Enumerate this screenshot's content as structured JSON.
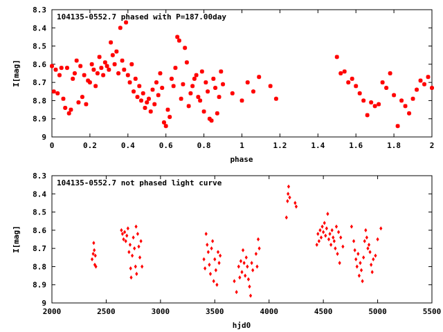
{
  "chart_data": [
    {
      "type": "scatter",
      "title": "104135-0552.7 phased with P=187.00day",
      "xlabel": "phase",
      "ylabel": "I[mag]",
      "xlim": [
        0,
        2
      ],
      "ylim": [
        8.3,
        9
      ],
      "y_inverted": true,
      "xticks": [
        "0",
        "0.2",
        "0.4",
        "0.6",
        "0.8",
        "1",
        "1.2",
        "1.4",
        "1.6",
        "1.8",
        "2"
      ],
      "yticks": [
        "8.3",
        "8.4",
        "8.5",
        "8.6",
        "8.7",
        "8.8",
        "8.9",
        "9"
      ],
      "marker": "star",
      "color": "#ff0000",
      "points": [
        [
          0.0,
          8.61
        ],
        [
          0.01,
          8.75
        ],
        [
          0.02,
          8.63
        ],
        [
          0.03,
          8.76
        ],
        [
          0.04,
          8.66
        ],
        [
          0.05,
          8.62
        ],
        [
          0.06,
          8.79
        ],
        [
          0.07,
          8.84
        ],
        [
          0.08,
          8.62
        ],
        [
          0.09,
          8.87
        ],
        [
          0.1,
          8.85
        ],
        [
          0.11,
          8.68
        ],
        [
          0.12,
          8.65
        ],
        [
          0.13,
          8.58
        ],
        [
          0.14,
          8.81
        ],
        [
          0.15,
          8.61
        ],
        [
          0.16,
          8.78
        ],
        [
          0.17,
          8.66
        ],
        [
          0.18,
          8.82
        ],
        [
          0.19,
          8.69
        ],
        [
          0.2,
          8.7
        ],
        [
          0.21,
          8.6
        ],
        [
          0.22,
          8.63
        ],
        [
          0.23,
          8.72
        ],
        [
          0.24,
          8.65
        ],
        [
          0.25,
          8.56
        ],
        [
          0.26,
          8.62
        ],
        [
          0.27,
          8.66
        ],
        [
          0.28,
          8.59
        ],
        [
          0.29,
          8.61
        ],
        [
          0.3,
          8.63
        ],
        [
          0.31,
          8.48
        ],
        [
          0.32,
          8.55
        ],
        [
          0.33,
          8.6
        ],
        [
          0.34,
          8.53
        ],
        [
          0.35,
          8.65
        ],
        [
          0.36,
          8.4
        ],
        [
          0.37,
          8.58
        ],
        [
          0.38,
          8.63
        ],
        [
          0.39,
          8.37
        ],
        [
          0.4,
          8.66
        ],
        [
          0.41,
          8.7
        ],
        [
          0.42,
          8.6
        ],
        [
          0.43,
          8.75
        ],
        [
          0.44,
          8.68
        ],
        [
          0.45,
          8.78
        ],
        [
          0.46,
          8.72
        ],
        [
          0.47,
          8.8
        ],
        [
          0.48,
          8.76
        ],
        [
          0.49,
          8.84
        ],
        [
          0.5,
          8.81
        ],
        [
          0.51,
          8.79
        ],
        [
          0.52,
          8.86
        ],
        [
          0.53,
          8.74
        ],
        [
          0.54,
          8.82
        ],
        [
          0.55,
          8.7
        ],
        [
          0.56,
          8.77
        ],
        [
          0.57,
          8.65
        ],
        [
          0.58,
          8.73
        ],
        [
          0.59,
          8.92
        ],
        [
          0.6,
          8.94
        ],
        [
          0.61,
          8.85
        ],
        [
          0.62,
          8.89
        ],
        [
          0.63,
          8.68
        ],
        [
          0.64,
          8.72
        ],
        [
          0.65,
          8.62
        ],
        [
          0.66,
          8.45
        ],
        [
          0.67,
          8.47
        ],
        [
          0.68,
          8.79
        ],
        [
          0.69,
          8.71
        ],
        [
          0.7,
          8.51
        ],
        [
          0.71,
          8.59
        ],
        [
          0.72,
          8.83
        ],
        [
          0.73,
          8.76
        ],
        [
          0.74,
          8.72
        ],
        [
          0.75,
          8.68
        ],
        [
          0.76,
          8.66
        ],
        [
          0.77,
          8.78
        ],
        [
          0.78,
          8.8
        ],
        [
          0.79,
          8.64
        ],
        [
          0.8,
          8.86
        ],
        [
          0.81,
          8.7
        ],
        [
          0.82,
          8.75
        ],
        [
          0.83,
          8.9
        ],
        [
          0.84,
          8.91
        ],
        [
          0.85,
          8.68
        ],
        [
          0.86,
          8.73
        ],
        [
          0.87,
          8.87
        ],
        [
          0.88,
          8.78
        ],
        [
          0.89,
          8.64
        ],
        [
          0.9,
          8.71
        ],
        [
          0.95,
          8.76
        ],
        [
          1.0,
          8.8
        ],
        [
          1.03,
          8.7
        ],
        [
          1.06,
          8.75
        ],
        [
          1.09,
          8.67
        ],
        [
          1.15,
          8.72
        ],
        [
          1.18,
          8.79
        ],
        [
          1.5,
          8.56
        ],
        [
          1.52,
          8.65
        ],
        [
          1.54,
          8.64
        ],
        [
          1.56,
          8.7
        ],
        [
          1.58,
          8.68
        ],
        [
          1.6,
          8.72
        ],
        [
          1.62,
          8.76
        ],
        [
          1.64,
          8.8
        ],
        [
          1.66,
          8.88
        ],
        [
          1.68,
          8.81
        ],
        [
          1.7,
          8.83
        ],
        [
          1.72,
          8.82
        ],
        [
          1.74,
          8.7
        ],
        [
          1.76,
          8.73
        ],
        [
          1.78,
          8.65
        ],
        [
          1.8,
          8.77
        ],
        [
          1.82,
          8.94
        ],
        [
          1.84,
          8.8
        ],
        [
          1.86,
          8.83
        ],
        [
          1.88,
          8.87
        ],
        [
          1.9,
          8.79
        ],
        [
          1.92,
          8.74
        ],
        [
          1.94,
          8.69
        ],
        [
          1.96,
          8.71
        ],
        [
          1.98,
          8.67
        ],
        [
          2.0,
          8.73
        ]
      ]
    },
    {
      "type": "scatter",
      "title": "104135-0552.7 not phased light curve",
      "xlabel": "hjd0",
      "ylabel": "I[mag]",
      "xlim": [
        2000,
        5500
      ],
      "ylim": [
        8.3,
        9
      ],
      "y_inverted": true,
      "xticks": [
        "2000",
        "2500",
        "3000",
        "3500",
        "4000",
        "4500",
        "5000",
        "5500"
      ],
      "yticks": [
        "8.3",
        "8.4",
        "8.5",
        "8.6",
        "8.7",
        "8.8",
        "8.9",
        "9"
      ],
      "marker": "diamond",
      "color": "#ff0000",
      "points": [
        [
          2370,
          8.76
        ],
        [
          2380,
          8.73
        ],
        [
          2385,
          8.67
        ],
        [
          2390,
          8.71
        ],
        [
          2395,
          8.79
        ],
        [
          2400,
          8.74
        ],
        [
          2405,
          8.8
        ],
        [
          2640,
          8.6
        ],
        [
          2650,
          8.62
        ],
        [
          2660,
          8.65
        ],
        [
          2670,
          8.61
        ],
        [
          2680,
          8.66
        ],
        [
          2690,
          8.63
        ],
        [
          2700,
          8.59
        ],
        [
          2710,
          8.72
        ],
        [
          2720,
          8.68
        ],
        [
          2725,
          8.81
        ],
        [
          2730,
          8.86
        ],
        [
          2740,
          8.74
        ],
        [
          2750,
          8.64
        ],
        [
          2760,
          8.7
        ],
        [
          2770,
          8.8
        ],
        [
          2775,
          8.58
        ],
        [
          2780,
          8.84
        ],
        [
          2790,
          8.62
        ],
        [
          2800,
          8.69
        ],
        [
          2810,
          8.75
        ],
        [
          2820,
          8.66
        ],
        [
          2830,
          8.8
        ],
        [
          3400,
          8.76
        ],
        [
          3410,
          8.81
        ],
        [
          3420,
          8.62
        ],
        [
          3430,
          8.68
        ],
        [
          3440,
          8.72
        ],
        [
          3450,
          8.79
        ],
        [
          3460,
          8.84
        ],
        [
          3470,
          8.7
        ],
        [
          3480,
          8.66
        ],
        [
          3490,
          8.88
        ],
        [
          3500,
          8.76
        ],
        [
          3510,
          8.82
        ],
        [
          3520,
          8.9
        ],
        [
          3530,
          8.72
        ],
        [
          3540,
          8.78
        ],
        [
          3550,
          8.74
        ],
        [
          3680,
          8.88
        ],
        [
          3700,
          8.94
        ],
        [
          3720,
          8.8
        ],
        [
          3730,
          8.86
        ],
        [
          3740,
          8.77
        ],
        [
          3750,
          8.83
        ],
        [
          3760,
          8.71
        ],
        [
          3770,
          8.78
        ],
        [
          3780,
          8.85
        ],
        [
          3790,
          8.75
        ],
        [
          3800,
          8.8
        ],
        [
          3810,
          8.87
        ],
        [
          3820,
          8.91
        ],
        [
          3830,
          8.96
        ],
        [
          3840,
          8.78
        ],
        [
          3850,
          8.82
        ],
        [
          3880,
          8.73
        ],
        [
          3890,
          8.8
        ],
        [
          3900,
          8.65
        ],
        [
          3910,
          8.7
        ],
        [
          4160,
          8.53
        ],
        [
          4170,
          8.44
        ],
        [
          4175,
          8.4
        ],
        [
          4180,
          8.36
        ],
        [
          4190,
          8.42
        ],
        [
          4240,
          8.45
        ],
        [
          4250,
          8.47
        ],
        [
          4440,
          8.68
        ],
        [
          4450,
          8.62
        ],
        [
          4460,
          8.66
        ],
        [
          4470,
          8.6
        ],
        [
          4480,
          8.64
        ],
        [
          4490,
          8.58
        ],
        [
          4500,
          8.61
        ],
        [
          4510,
          8.56
        ],
        [
          4520,
          8.63
        ],
        [
          4530,
          8.59
        ],
        [
          4540,
          8.51
        ],
        [
          4550,
          8.65
        ],
        [
          4560,
          8.62
        ],
        [
          4570,
          8.68
        ],
        [
          4580,
          8.6
        ],
        [
          4590,
          8.64
        ],
        [
          4600,
          8.66
        ],
        [
          4610,
          8.7
        ],
        [
          4620,
          8.58
        ],
        [
          4630,
          8.73
        ],
        [
          4640,
          8.61
        ],
        [
          4650,
          8.78
        ],
        [
          4660,
          8.64
        ],
        [
          4680,
          8.69
        ],
        [
          4760,
          8.58
        ],
        [
          4780,
          8.66
        ],
        [
          4790,
          8.71
        ],
        [
          4800,
          8.76
        ],
        [
          4810,
          8.8
        ],
        [
          4820,
          8.73
        ],
        [
          4830,
          8.85
        ],
        [
          4840,
          8.78
        ],
        [
          4850,
          8.82
        ],
        [
          4860,
          8.88
        ],
        [
          4870,
          8.75
        ],
        [
          4880,
          8.66
        ],
        [
          4890,
          8.6
        ],
        [
          4900,
          8.64
        ],
        [
          4910,
          8.7
        ],
        [
          4920,
          8.68
        ],
        [
          4930,
          8.72
        ],
        [
          4940,
          8.79
        ],
        [
          4950,
          8.83
        ],
        [
          4960,
          8.76
        ],
        [
          4980,
          8.74
        ],
        [
          5000,
          8.65
        ],
        [
          5030,
          8.59
        ]
      ]
    }
  ]
}
